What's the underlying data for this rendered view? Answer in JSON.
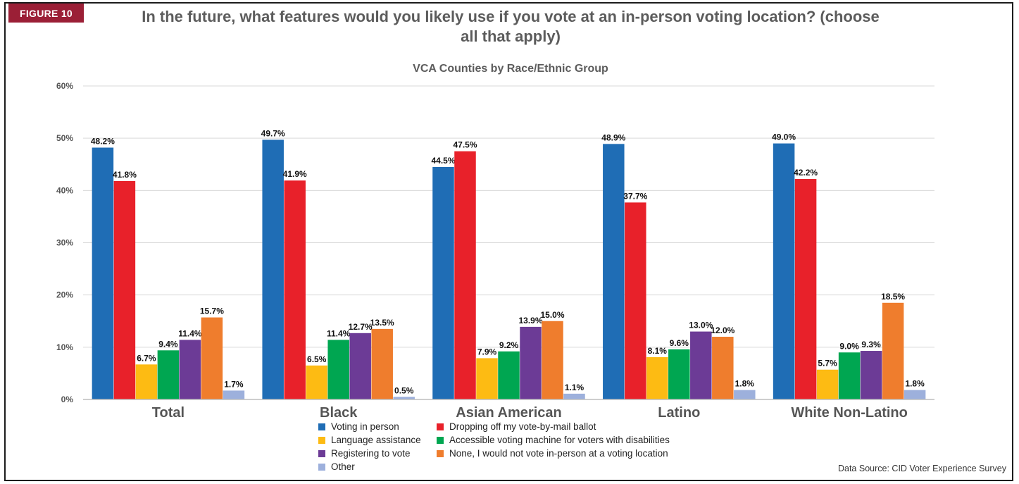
{
  "figure_label": "FIGURE 10",
  "source": "Data Source: CID Voter Experience Survey",
  "chart_data": {
    "type": "bar",
    "title": "In the future, what features would you likely use if you vote at an in-person voting location? (choose all that apply)",
    "subtitle": "VCA Counties by Race/Ethnic Group",
    "categories": [
      "Total",
      "Black",
      "Asian American",
      "Latino",
      "White Non-Latino"
    ],
    "ylim": [
      0,
      60
    ],
    "yticks": [
      0,
      10,
      20,
      30,
      40,
      50,
      60
    ],
    "ytick_labels": [
      "0%",
      "10%",
      "20%",
      "30%",
      "40%",
      "50%",
      "60%"
    ],
    "grid": true,
    "legend_position": "bottom",
    "series": [
      {
        "name": "Voting in person",
        "color": "#1f6db5",
        "values": [
          48.2,
          49.7,
          44.5,
          48.9,
          49.0
        ],
        "labels": [
          "48.2%",
          "49.7%",
          "44.5%",
          "48.9%",
          "49.0%"
        ]
      },
      {
        "name": "Dropping off my vote-by-mail ballot",
        "color": "#e8212a",
        "values": [
          41.8,
          41.9,
          47.5,
          37.7,
          42.2
        ],
        "labels": [
          "41.8%",
          "41.9%",
          "47.5%",
          "37.7%",
          "42.2%"
        ]
      },
      {
        "name": "Language assistance",
        "color": "#fdbb13",
        "values": [
          6.7,
          6.5,
          7.9,
          8.1,
          5.7
        ],
        "labels": [
          "6.7%",
          "6.5%",
          "7.9%",
          "8.1%",
          "5.7%"
        ]
      },
      {
        "name": "Accessible voting machine for voters with disabilities",
        "color": "#00a651",
        "values": [
          9.4,
          11.4,
          9.2,
          9.6,
          9.0
        ],
        "labels": [
          "9.4%",
          "11.4%",
          "9.2%",
          "9.6%",
          "9.0%"
        ]
      },
      {
        "name": "Registering to vote",
        "color": "#6c3b96",
        "values": [
          11.4,
          12.7,
          13.9,
          13.0,
          9.3
        ],
        "labels": [
          "11.4%",
          "12.7%",
          "13.9%",
          "13.0%",
          "9.3%"
        ]
      },
      {
        "name": "None, I would not vote in-person at a voting location",
        "color": "#ef7d2d",
        "values": [
          15.7,
          13.5,
          15.0,
          12.0,
          18.5
        ],
        "labels": [
          "15.7%",
          "13.5%",
          "15.0%",
          "12.0%",
          "18.5%"
        ]
      },
      {
        "name": "Other",
        "color": "#9db0dc",
        "values": [
          1.7,
          0.5,
          1.1,
          1.8,
          1.8
        ],
        "labels": [
          "1.7%",
          "0.5%",
          "1.1%",
          "1.8%",
          "1.8%"
        ]
      }
    ]
  }
}
